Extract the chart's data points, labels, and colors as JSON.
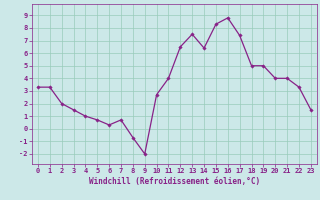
{
  "x": [
    0,
    1,
    2,
    3,
    4,
    5,
    6,
    7,
    8,
    9,
    10,
    11,
    12,
    13,
    14,
    15,
    16,
    17,
    18,
    19,
    20,
    21,
    22,
    23
  ],
  "y": [
    3.3,
    3.3,
    2.0,
    1.5,
    1.0,
    0.7,
    0.3,
    0.7,
    -0.7,
    -2.0,
    2.7,
    4.0,
    6.5,
    7.5,
    6.4,
    8.3,
    8.8,
    7.4,
    5.0,
    5.0,
    4.0,
    4.0,
    3.3,
    1.5
  ],
  "line_color": "#882288",
  "marker": "D",
  "marker_size": 1.8,
  "linewidth": 0.9,
  "xlabel": "Windchill (Refroidissement éolien,°C)",
  "xlabel_fontsize": 5.5,
  "ylabel_ticks": [
    -2,
    -1,
    0,
    1,
    2,
    3,
    4,
    5,
    6,
    7,
    8,
    9
  ],
  "xlim": [
    -0.5,
    23.5
  ],
  "ylim": [
    -2.8,
    9.9
  ],
  "bg_color": "#cce8e8",
  "grid_color": "#99ccbb",
  "tick_color": "#882288",
  "tick_fontsize": 5.0,
  "spine_color": "#882288"
}
